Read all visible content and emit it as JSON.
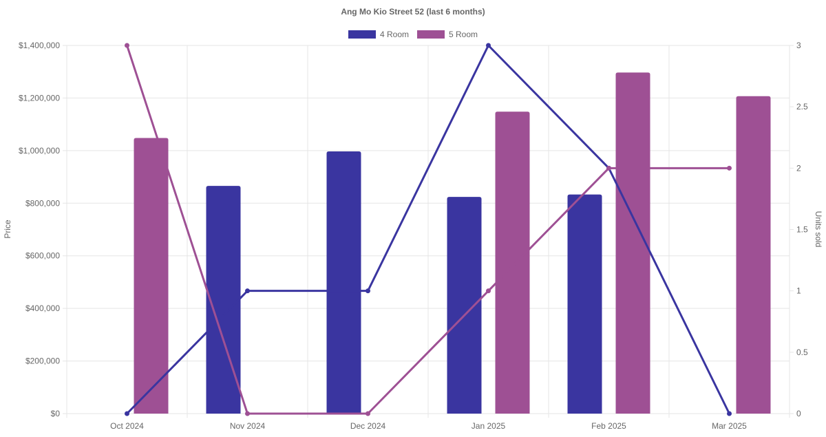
{
  "chart_data": {
    "type": "bar",
    "title": "Ang Mo Kio Street 52 (last 6 months)",
    "categories": [
      "Oct 2024",
      "Nov 2024",
      "Dec 2024",
      "Jan 2025",
      "Feb 2025",
      "Mar 2025"
    ],
    "ylabel": "Price",
    "y2label": "Units sold",
    "ylim": [
      0,
      1400000
    ],
    "y2lim": [
      0,
      3
    ],
    "y_ticks": [
      "$0",
      "$200,000",
      "$400,000",
      "$600,000",
      "$800,000",
      "$1,000,000",
      "$1,200,000",
      "$1,400,000"
    ],
    "y2_ticks": [
      "0",
      "0.5",
      "1",
      "1.5",
      "2",
      "2.5",
      "3"
    ],
    "grid": true,
    "legend_position": "top",
    "legend": [
      {
        "name": "4 Room",
        "color": "#3a35a0"
      },
      {
        "name": "5 Room",
        "color": "#9e5094"
      }
    ],
    "bar_series": [
      {
        "name": "4 Room",
        "color": "#3a35a0",
        "values": [
          null,
          866000,
          997000,
          824000,
          833000,
          null
        ]
      },
      {
        "name": "5 Room",
        "color": "#9e5094",
        "values": [
          1048000,
          null,
          null,
          1148000,
          1297000,
          1207000
        ]
      }
    ],
    "line_series": [
      {
        "name": "4 Room",
        "color": "#3a35a0",
        "axis": "right",
        "values": [
          0,
          1,
          1,
          3,
          2,
          0
        ]
      },
      {
        "name": "5 Room",
        "color": "#9e5094",
        "axis": "right",
        "values": [
          3,
          0,
          0,
          1,
          2,
          2
        ]
      }
    ]
  }
}
